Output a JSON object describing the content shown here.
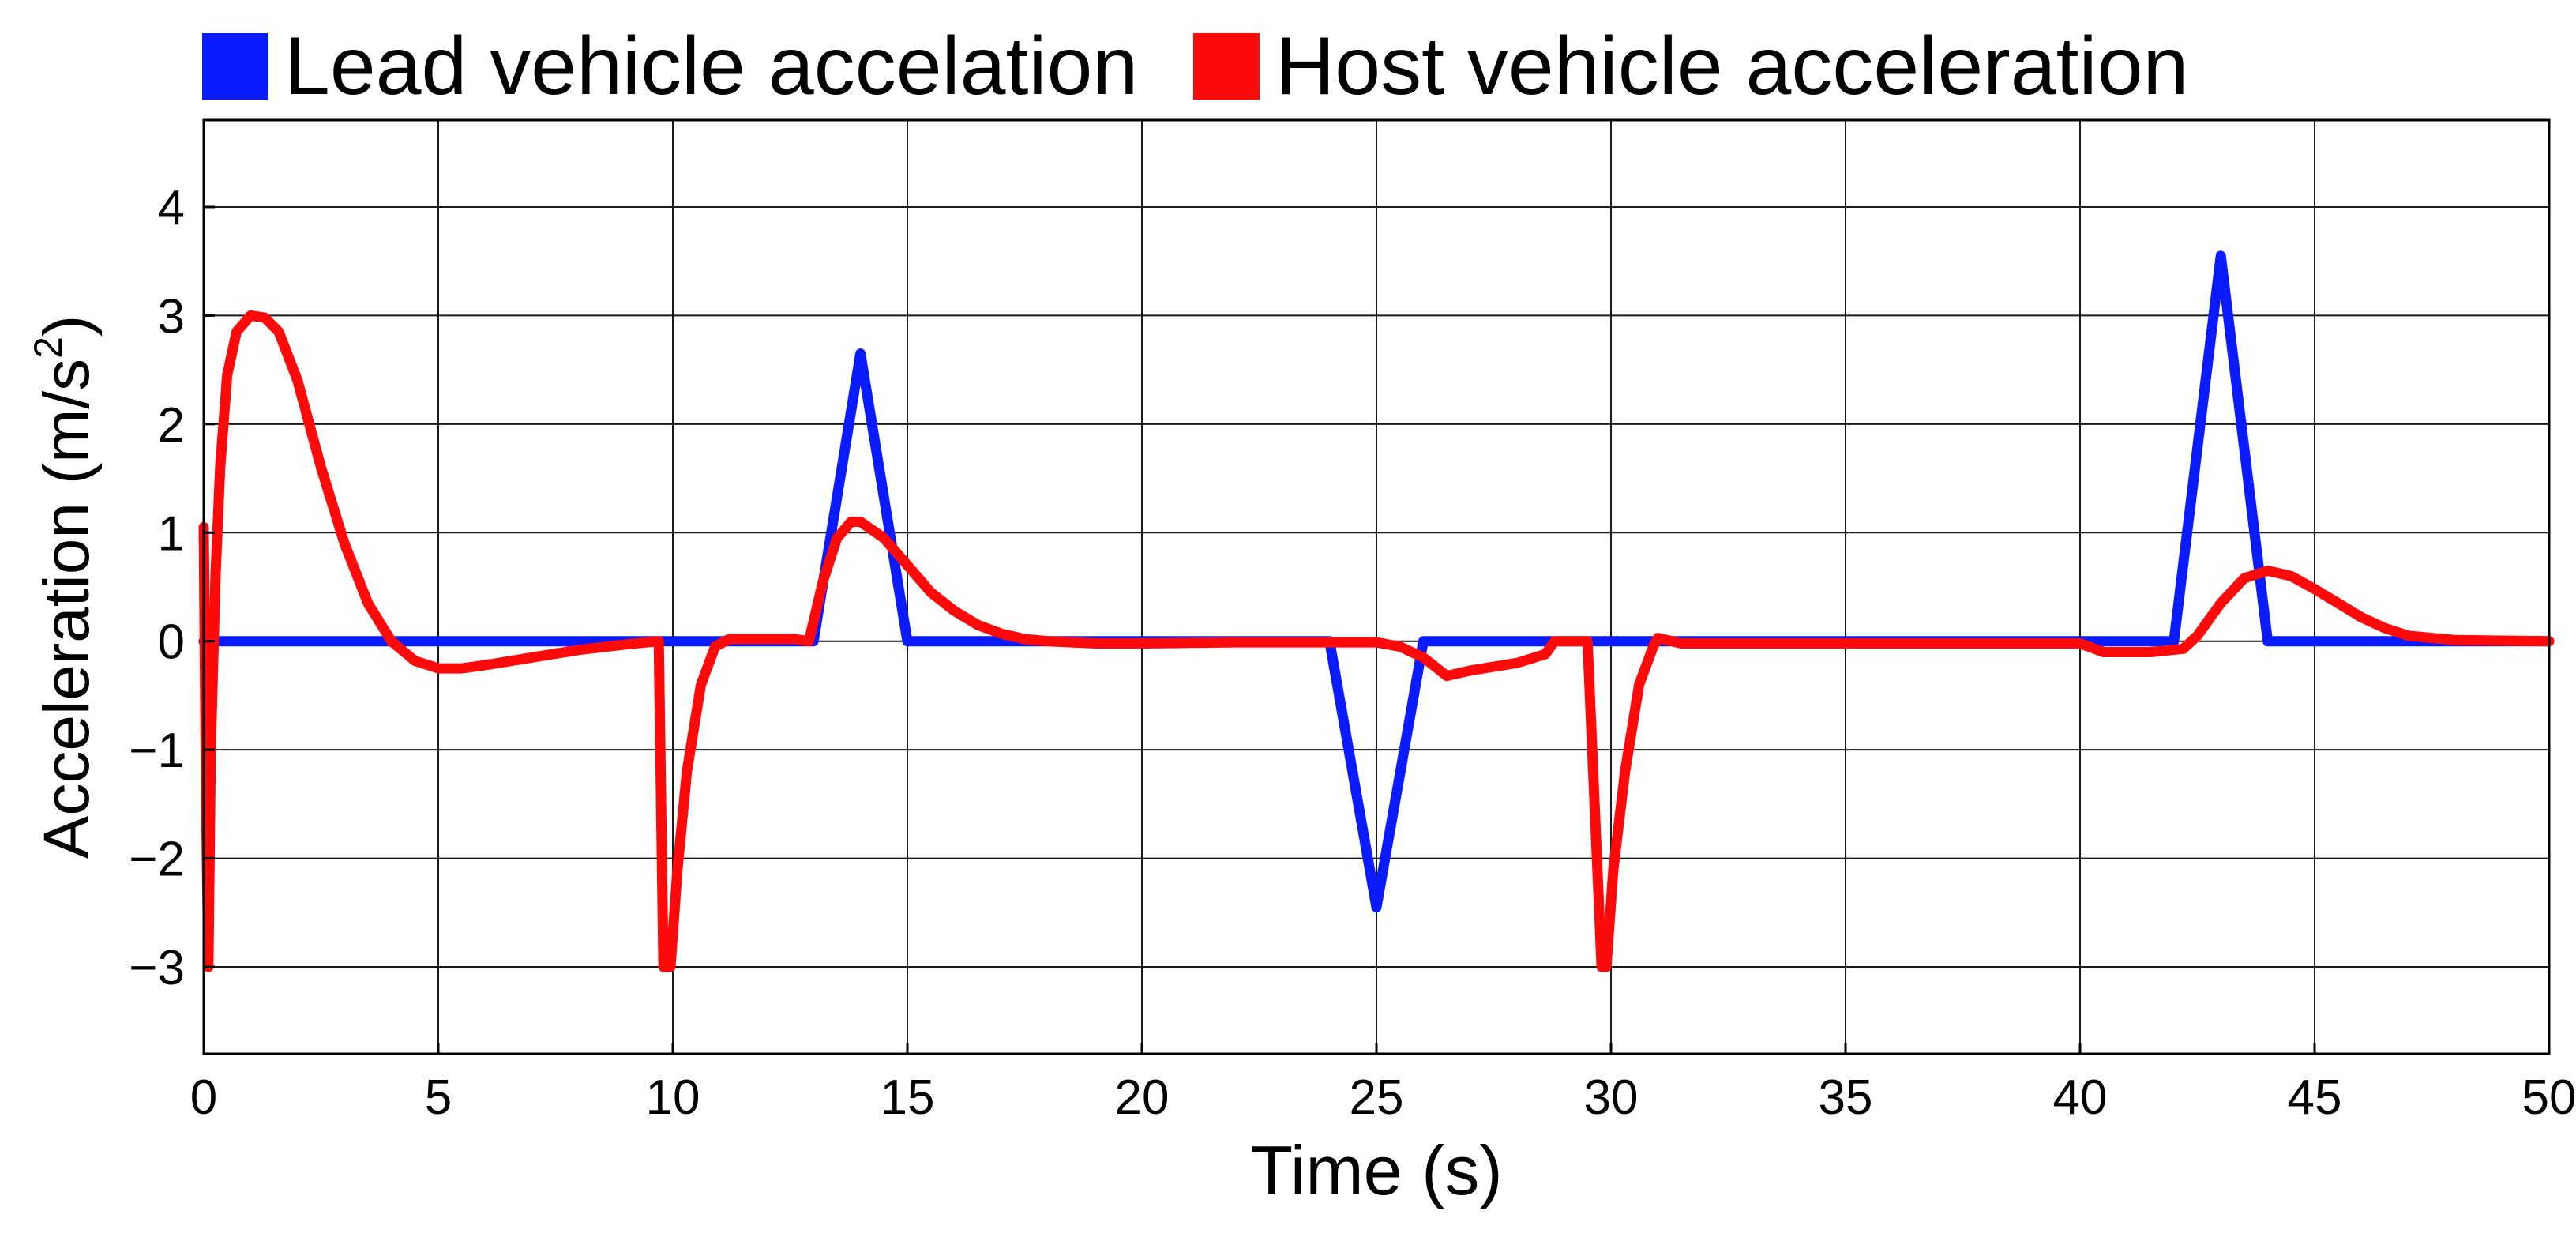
{
  "chart_data": {
    "type": "line",
    "title": "",
    "xlabel": "Time (s)",
    "ylabel_text": "Acceleration (m/s",
    "ylabel_sup": "2",
    "ylabel_close": ")",
    "xlim": [
      0,
      50
    ],
    "ylim": [
      -3.8,
      4.8
    ],
    "xticks": [
      0,
      5,
      10,
      15,
      20,
      25,
      30,
      35,
      40,
      45,
      50
    ],
    "xtick_labels": [
      "0",
      "5",
      "10",
      "15",
      "20",
      "25",
      "30",
      "35",
      "40",
      "45",
      "50"
    ],
    "yticks": [
      -3,
      -2,
      -1,
      0,
      1,
      2,
      3,
      4
    ],
    "ytick_labels": [
      "−3",
      "−2",
      "−1",
      "0",
      "1",
      "2",
      "3",
      "4"
    ],
    "grid": true,
    "legend_position": "top",
    "series": [
      {
        "name": "Lead vehicle accelation",
        "color": "#0a1cff",
        "x": [
          0,
          13.0,
          14.0,
          15.0,
          24.0,
          25.0,
          26.0,
          42.0,
          43.0,
          44.0,
          50
        ],
        "y": [
          0,
          0,
          2.65,
          0,
          0,
          -2.45,
          0,
          0,
          3.55,
          0,
          0
        ]
      },
      {
        "name": "Host vehicle acceleration",
        "color": "#ff0a0a",
        "x": [
          0,
          0.05,
          0.1,
          0.15,
          0.25,
          0.35,
          0.5,
          0.7,
          1.0,
          1.3,
          1.6,
          2.0,
          2.5,
          3.0,
          3.5,
          4.0,
          4.5,
          5.0,
          5.5,
          6.0,
          7.0,
          8.0,
          9.0,
          9.7,
          9.8,
          9.95,
          10.1,
          10.3,
          10.6,
          10.9,
          11.2,
          11.5,
          12.0,
          12.6,
          12.9,
          13.2,
          13.5,
          13.8,
          14.0,
          14.5,
          15.0,
          15.5,
          16.0,
          16.5,
          17.0,
          17.5,
          18.0,
          19.0,
          20.0,
          22.0,
          24.0,
          25.0,
          25.5,
          26.0,
          26.5,
          27.0,
          28.0,
          28.6,
          28.8,
          29.5,
          29.8,
          29.9,
          30.05,
          30.3,
          30.6,
          30.9,
          31.0,
          31.5,
          32.0,
          35.0,
          38.0,
          40.0,
          40.5,
          41.5,
          42.2,
          42.5,
          43.0,
          43.5,
          44.0,
          44.5,
          45.0,
          45.5,
          46.0,
          46.5,
          47.0,
          48.0,
          50
        ],
        "y": [
          1.05,
          -1.5,
          -3.0,
          -1.0,
          0.6,
          1.6,
          2.45,
          2.85,
          3.0,
          2.98,
          2.85,
          2.4,
          1.6,
          0.9,
          0.35,
          0.0,
          -0.18,
          -0.25,
          -0.25,
          -0.22,
          -0.15,
          -0.08,
          -0.03,
          0.0,
          -3.0,
          -3.0,
          -2.1,
          -1.2,
          -0.4,
          -0.05,
          0.02,
          0.02,
          0.02,
          0.02,
          0.0,
          0.55,
          0.95,
          1.1,
          1.1,
          0.95,
          0.7,
          0.45,
          0.28,
          0.15,
          0.07,
          0.02,
          0.0,
          -0.02,
          -0.02,
          -0.01,
          -0.01,
          -0.01,
          -0.05,
          -0.15,
          -0.32,
          -0.27,
          -0.2,
          -0.12,
          0.0,
          0.0,
          -3.0,
          -3.0,
          -2.1,
          -1.2,
          -0.4,
          -0.05,
          0.03,
          -0.02,
          -0.02,
          -0.02,
          -0.02,
          -0.02,
          -0.1,
          -0.1,
          -0.07,
          0.05,
          0.35,
          0.58,
          0.65,
          0.6,
          0.48,
          0.35,
          0.22,
          0.12,
          0.05,
          0.01,
          0.0
        ]
      }
    ]
  }
}
